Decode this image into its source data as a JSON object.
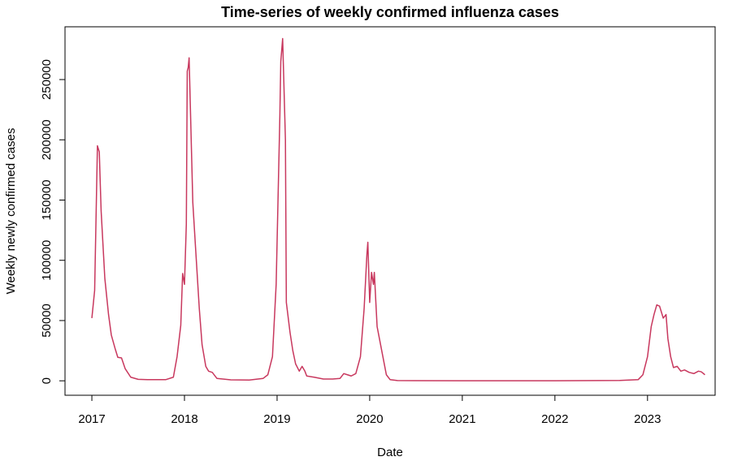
{
  "chart_data": {
    "type": "line",
    "title": "Time-series of weekly confirmed influenza cases",
    "x_label": "Date",
    "y_label": "Weekly newly confirmed cases",
    "color": "#c8385e",
    "x": [
      2017.0,
      2017.03,
      2017.06,
      2017.08,
      2017.1,
      2017.14,
      2017.18,
      2017.21,
      2017.25,
      2017.28,
      2017.32,
      2017.36,
      2017.42,
      2017.5,
      2017.6,
      2017.8,
      2017.88,
      2017.92,
      2017.96,
      2017.98,
      2018.0,
      2018.02,
      2018.03,
      2018.04,
      2018.05,
      2018.09,
      2018.12,
      2018.16,
      2018.19,
      2018.23,
      2018.26,
      2018.3,
      2018.35,
      2018.5,
      2018.7,
      2018.85,
      2018.9,
      2018.95,
      2018.99,
      2019.03,
      2019.04,
      2019.06,
      2019.09,
      2019.1,
      2019.14,
      2019.17,
      2019.2,
      2019.24,
      2019.27,
      2019.3,
      2019.32,
      2019.4,
      2019.5,
      2019.6,
      2019.68,
      2019.72,
      2019.76,
      2019.8,
      2019.85,
      2019.9,
      2019.94,
      2019.97,
      2019.98,
      2020.0,
      2020.02,
      2020.04,
      2020.05,
      2020.08,
      2020.13,
      2020.18,
      2020.22,
      2020.3,
      2021.0,
      2022.0,
      2022.7,
      2022.9,
      2022.95,
      2023.0,
      2023.04,
      2023.07,
      2023.1,
      2023.13,
      2023.17,
      2023.2,
      2023.22,
      2023.25,
      2023.28,
      2023.32,
      2023.36,
      2023.4,
      2023.45,
      2023.5,
      2023.55,
      2023.58,
      2023.62
    ],
    "values": [
      52000,
      75000,
      195000,
      190000,
      141000,
      85000,
      55000,
      38000,
      27000,
      19500,
      19000,
      10000,
      3000,
      1200,
      1000,
      1000,
      3000,
      20000,
      46000,
      89000,
      80000,
      130000,
      257000,
      260000,
      268000,
      148000,
      110000,
      60000,
      30000,
      12000,
      8000,
      7000,
      2000,
      800,
      600,
      2000,
      5000,
      20000,
      80000,
      220000,
      265000,
      284000,
      200000,
      65000,
      40000,
      25000,
      14000,
      8000,
      12000,
      8000,
      4000,
      3000,
      1500,
      1500,
      2000,
      6000,
      5000,
      4000,
      6000,
      20000,
      60000,
      105000,
      115000,
      65000,
      90000,
      80000,
      90000,
      45000,
      25000,
      5000,
      1000,
      200,
      0,
      0,
      300,
      1000,
      5000,
      20000,
      45000,
      55000,
      63000,
      62000,
      52000,
      55000,
      35000,
      20000,
      11000,
      12000,
      8000,
      9000,
      7000,
      6000,
      8000,
      7500,
      5000
    ],
    "xlim": [
      2016.71,
      2023.73
    ],
    "xticks": [
      2017,
      2018,
      2019,
      2020,
      2021,
      2022,
      2023
    ],
    "ylim": [
      -12000,
      293800
    ],
    "yticks": [
      0,
      50000,
      100000,
      150000,
      200000,
      250000
    ]
  }
}
